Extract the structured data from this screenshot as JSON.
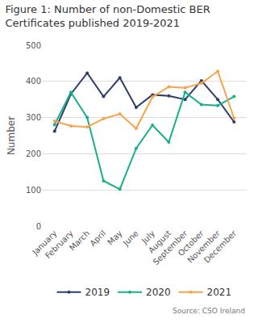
{
  "chart_data": {
    "type": "line",
    "title": "Figure 1: Number of non-Domestic BER Certificates published 2019-2021",
    "y_label": "Number",
    "source": "Source: CSO Ireland",
    "categories": [
      "January",
      "February",
      "March",
      "April",
      "May",
      "June",
      "July",
      "August",
      "September",
      "October",
      "November",
      "December"
    ],
    "series": [
      {
        "name": "2019",
        "color": "#2e3f6e",
        "values": [
          262,
          365,
          423,
          358,
          410,
          328,
          363,
          360,
          350,
          402,
          350,
          288
        ]
      },
      {
        "name": "2020",
        "color": "#17b08a",
        "values": [
          280,
          370,
          300,
          125,
          102,
          215,
          279,
          232,
          370,
          336,
          333,
          358
        ]
      },
      {
        "name": "2021",
        "color": "#f7a54a",
        "values": [
          290,
          277,
          274,
          297,
          310,
          270,
          357,
          385,
          382,
          395,
          428,
          298
        ]
      }
    ],
    "ylim": [
      0,
      500
    ],
    "yticks": [
      0,
      100,
      200,
      300,
      400,
      500
    ],
    "grid": true,
    "legend": "bottom",
    "marker": "circle"
  }
}
